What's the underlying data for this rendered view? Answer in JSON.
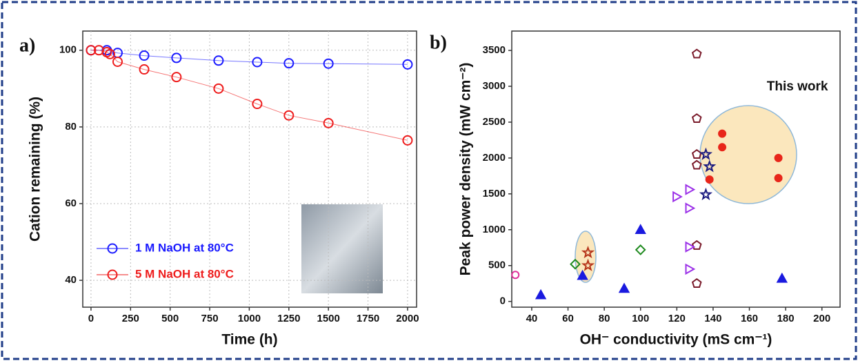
{
  "chart_data": [
    {
      "type": "line",
      "panel_label": "a)",
      "x_label": "Time (h)",
      "y_label": "Cation remaining (%)",
      "xlim": [
        -52,
        2057
      ],
      "xticks": [
        0,
        250,
        500,
        750,
        1000,
        1250,
        1500,
        1750,
        2000
      ],
      "ylim": [
        33,
        105
      ],
      "yticks": [
        40,
        60,
        80,
        100
      ],
      "grid": true,
      "legend": "lower left",
      "series": [
        {
          "name": "1 M NaOH at 80°C",
          "color": "#1a1aff",
          "x": [
            0,
            100,
            168,
            336,
            540,
            806,
            1050,
            1250,
            1500,
            2000
          ],
          "values": [
            100,
            100,
            99.3,
            98.6,
            98,
            97.3,
            96.9,
            96.6,
            96.5,
            96.3
          ]
        },
        {
          "name": "5 M NaOH at 80°C",
          "color": "#ee1c1c",
          "x": [
            0,
            50,
            100,
            120,
            168,
            336,
            540,
            806,
            1050,
            1250,
            1500,
            2000
          ],
          "values": [
            100,
            100,
            99.5,
            99,
            97,
            95,
            93,
            90,
            86,
            83,
            81,
            76.5
          ]
        }
      ]
    },
    {
      "type": "scatter",
      "panel_label": "b)",
      "x_label": "OH⁻ conductivity (mS cm⁻¹)",
      "y_label": "Peak power density (mW cm⁻²)",
      "annotation": "This work",
      "xlim": [
        29,
        210
      ],
      "xticks": [
        40,
        60,
        80,
        100,
        120,
        140,
        160,
        180,
        200
      ],
      "ylim": [
        -80,
        3770
      ],
      "yticks": [
        0,
        500,
        1000,
        1500,
        2000,
        2500,
        3000,
        3500
      ],
      "grid": false,
      "series": [
        {
          "marker": "triangle-up",
          "filled": true,
          "color": "#1a1adf",
          "x": [
            45,
            68,
            91,
            100,
            178
          ],
          "values": [
            90,
            360,
            180,
            1000,
            320
          ]
        },
        {
          "marker": "circle",
          "filled": false,
          "color": "#e0309a",
          "x": [
            31
          ],
          "values": [
            370
          ]
        },
        {
          "marker": "diamond",
          "filled": false,
          "color": "#1f8a1f",
          "x": [
            64,
            100
          ],
          "values": [
            520,
            720
          ]
        },
        {
          "marker": "pentagon",
          "filled": false,
          "color": "#7a1a2a",
          "x": [
            131,
            131,
            131,
            131,
            131,
            131
          ],
          "values": [
            3450,
            2550,
            2050,
            1900,
            780,
            250
          ]
        },
        {
          "marker": "triangle-right",
          "filled": false,
          "color": "#9b30e8",
          "x": [
            120,
            127,
            127,
            127,
            127
          ],
          "values": [
            1460,
            1560,
            1300,
            760,
            450
          ]
        },
        {
          "marker": "star",
          "filled": false,
          "color": "#1a1a80",
          "x": [
            136,
            138,
            136
          ],
          "values": [
            2050,
            1880,
            1490
          ]
        },
        {
          "marker": "star",
          "filled": false,
          "color": "#b5341a",
          "x": [
            71,
            71
          ],
          "values": [
            680,
            500
          ]
        },
        {
          "marker": "circle",
          "filled": true,
          "color": "#e8261a",
          "x": [
            145,
            145,
            138,
            176,
            176
          ],
          "values": [
            2340,
            2150,
            1700,
            2000,
            1720
          ]
        }
      ]
    }
  ]
}
